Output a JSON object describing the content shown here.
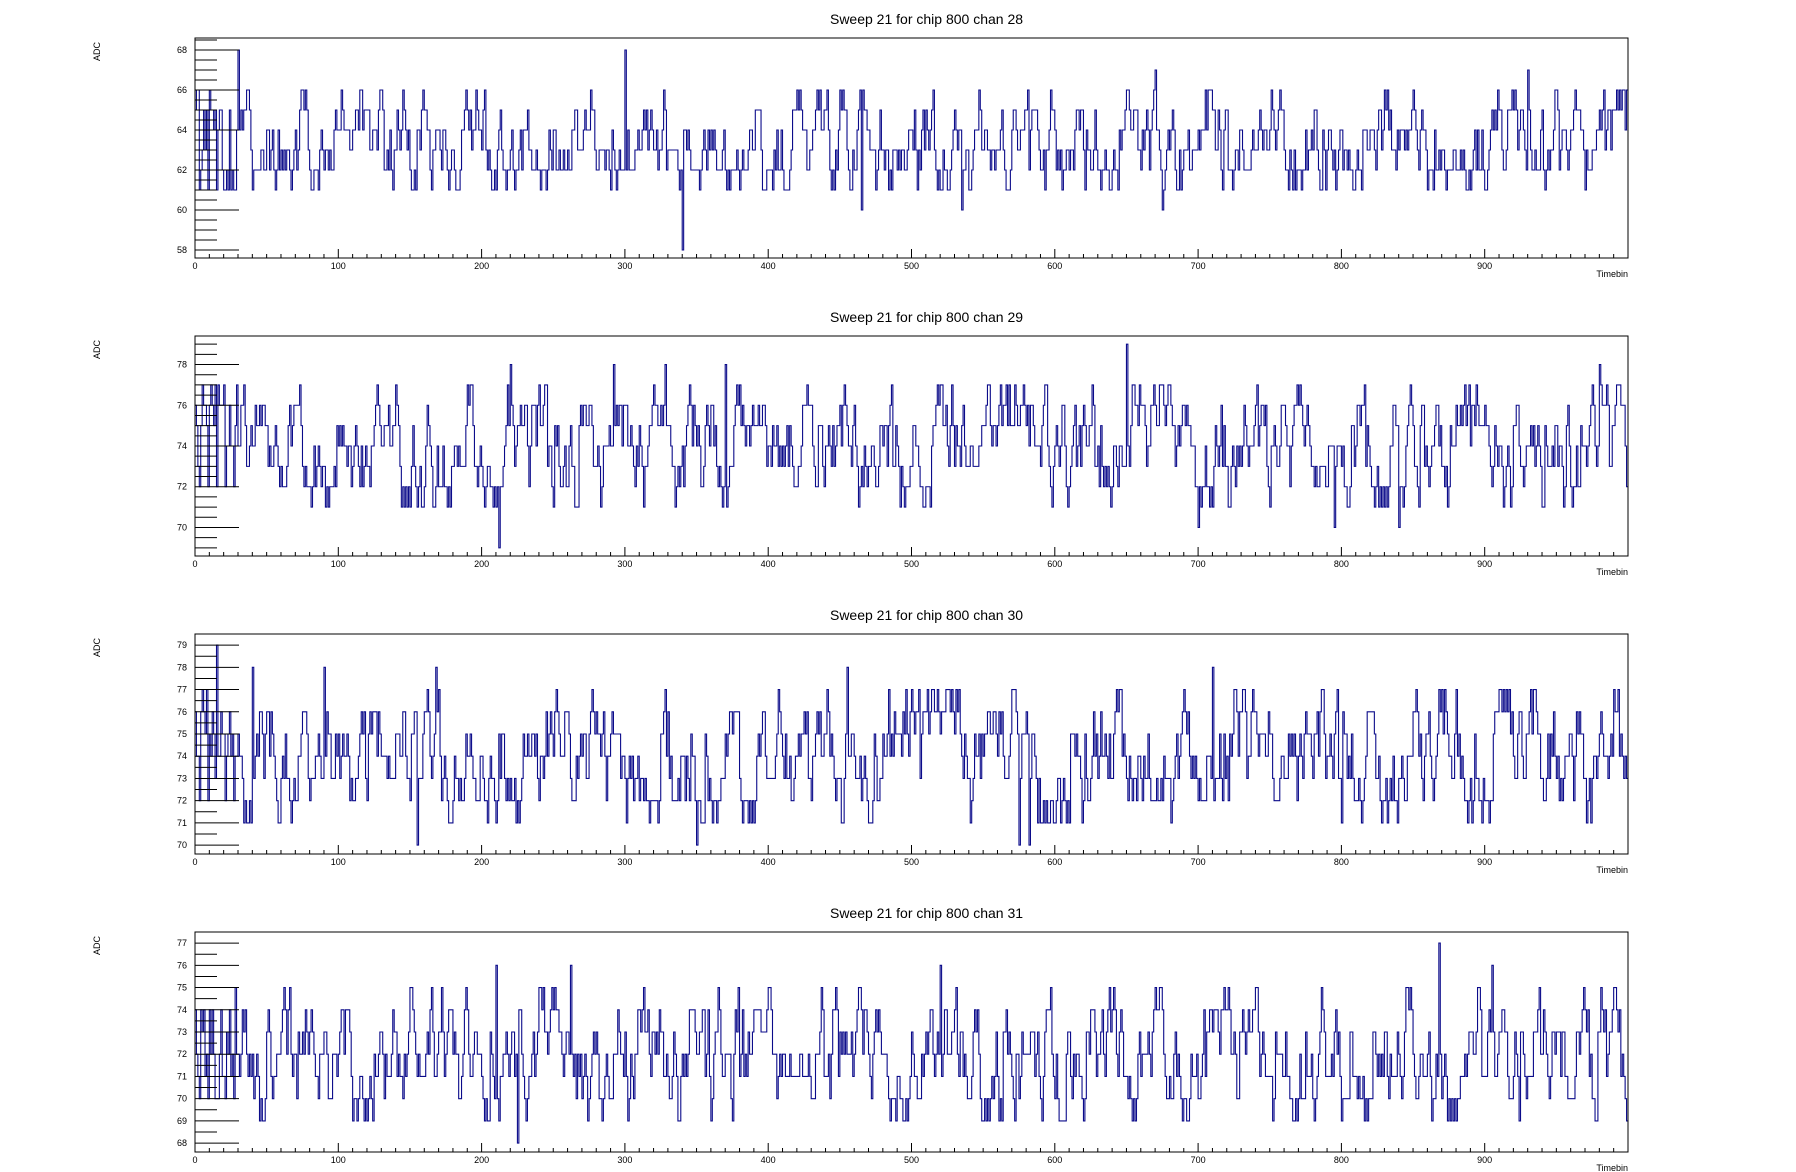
{
  "chart_data": [
    {
      "type": "line",
      "title": "Sweep 21 for chip 800 chan 28",
      "xlabel": "Timebin",
      "ylabel": "ADC",
      "xlim": [
        0,
        1000
      ],
      "ylim": [
        57.6,
        68.6
      ],
      "x_ticks": [
        0,
        100,
        200,
        300,
        400,
        500,
        600,
        700,
        800,
        900
      ],
      "y_ticks": [
        58,
        60,
        62,
        64,
        66,
        68
      ],
      "baseline": 63,
      "levels": [
        61,
        62,
        63,
        64,
        65,
        66
      ],
      "min": 58,
      "max": 68,
      "spikes": [
        {
          "x": 30,
          "y": 68
        },
        {
          "x": 300,
          "y": 68
        },
        {
          "x": 340,
          "y": 58
        },
        {
          "x": 465,
          "y": 60
        },
        {
          "x": 535,
          "y": 60
        },
        {
          "x": 675,
          "y": 60
        },
        {
          "x": 670,
          "y": 67
        },
        {
          "x": 930,
          "y": 67
        }
      ],
      "color": "#0b0b8a",
      "grid": false,
      "legend": false
    },
    {
      "type": "line",
      "title": "Sweep 21 for chip 800 chan 29",
      "xlabel": "Timebin",
      "ylabel": "ADC",
      "xlim": [
        0,
        1000
      ],
      "ylim": [
        68.6,
        79.4
      ],
      "x_ticks": [
        0,
        100,
        200,
        300,
        400,
        500,
        600,
        700,
        800,
        900
      ],
      "y_ticks": [
        70,
        72,
        74,
        76,
        78
      ],
      "baseline": 74,
      "levels": [
        71,
        72,
        73,
        74,
        75,
        76,
        77
      ],
      "min": 69,
      "max": 79,
      "spikes": [
        {
          "x": 212,
          "y": 69
        },
        {
          "x": 650,
          "y": 79
        },
        {
          "x": 220,
          "y": 78
        },
        {
          "x": 292,
          "y": 78
        },
        {
          "x": 328,
          "y": 78
        },
        {
          "x": 370,
          "y": 78
        },
        {
          "x": 700,
          "y": 70
        },
        {
          "x": 795,
          "y": 70
        },
        {
          "x": 840,
          "y": 70
        },
        {
          "x": 980,
          "y": 78
        }
      ],
      "color": "#0b0b8a",
      "grid": false,
      "legend": false
    },
    {
      "type": "line",
      "title": "Sweep 21 for chip 800 chan 30",
      "xlabel": "Timebin",
      "ylabel": "ADC",
      "xlim": [
        0,
        1000
      ],
      "ylim": [
        69.6,
        79.5
      ],
      "x_ticks": [
        0,
        100,
        200,
        300,
        400,
        500,
        600,
        700,
        800,
        900
      ],
      "y_ticks": [
        70,
        71,
        72,
        73,
        74,
        75,
        76,
        77,
        78,
        79
      ],
      "baseline": 74,
      "levels": [
        71,
        72,
        73,
        74,
        75,
        76,
        77
      ],
      "min": 70,
      "max": 79,
      "spikes": [
        {
          "x": 15,
          "y": 79
        },
        {
          "x": 40,
          "y": 78
        },
        {
          "x": 90,
          "y": 78
        },
        {
          "x": 155,
          "y": 70
        },
        {
          "x": 168,
          "y": 78
        },
        {
          "x": 350,
          "y": 70
        },
        {
          "x": 455,
          "y": 78
        },
        {
          "x": 575,
          "y": 70
        },
        {
          "x": 582,
          "y": 70
        },
        {
          "x": 710,
          "y": 78
        },
        {
          "x": 800,
          "y": 71
        },
        {
          "x": 990,
          "y": 77
        }
      ],
      "color": "#0b0b8a",
      "grid": false,
      "legend": false
    },
    {
      "type": "line",
      "title": "Sweep 21 for chip 800 chan 31",
      "xlabel": "Timebin",
      "ylabel": "ADC",
      "xlim": [
        0,
        1000
      ],
      "ylim": [
        67.6,
        77.5
      ],
      "x_ticks": [
        0,
        100,
        200,
        300,
        400,
        500,
        600,
        700,
        800,
        900
      ],
      "y_ticks": [
        68,
        69,
        70,
        71,
        72,
        73,
        74,
        75,
        76,
        77
      ],
      "baseline": 72,
      "levels": [
        69,
        70,
        71,
        72,
        73,
        74,
        75
      ],
      "min": 68,
      "max": 77,
      "spikes": [
        {
          "x": 210,
          "y": 76
        },
        {
          "x": 225,
          "y": 68
        },
        {
          "x": 262,
          "y": 76
        },
        {
          "x": 520,
          "y": 76
        },
        {
          "x": 868,
          "y": 77
        },
        {
          "x": 905,
          "y": 76
        },
        {
          "x": 990,
          "y": 75
        }
      ],
      "color": "#0b0b8a",
      "grid": false,
      "legend": false
    }
  ]
}
